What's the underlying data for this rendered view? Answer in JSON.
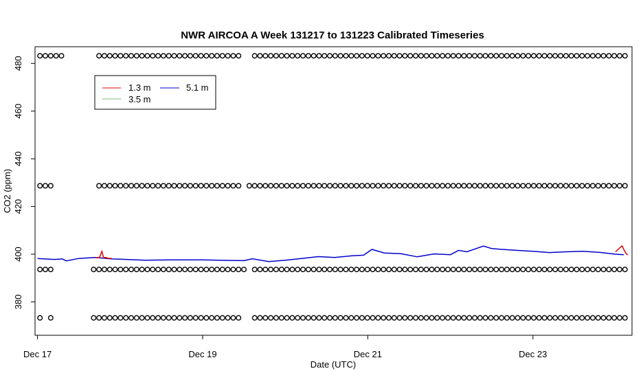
{
  "chart_data": {
    "type": "line",
    "title": "NWR AIRCOA A  Week 131217 to 131223  Calibrated Timeseries",
    "xlabel": "Date (UTC)",
    "ylabel": "CO2 (ppm)",
    "xlim_days": [
      16.97,
      24.2
    ],
    "ylim": [
      366,
      487
    ],
    "x_ticks": [
      {
        "day": 17,
        "label": "Dec 17"
      },
      {
        "day": 19,
        "label": "Dec 19"
      },
      {
        "day": 21,
        "label": "Dec 21"
      },
      {
        "day": 23,
        "label": "Dec 23"
      }
    ],
    "y_ticks": [
      380,
      400,
      420,
      440,
      460,
      480
    ],
    "grid": false,
    "legend": {
      "position": "top-left",
      "entries": [
        {
          "label": "1.3 m",
          "color": "#dd0000"
        },
        {
          "label": "5.1 m",
          "color": "#0000cc"
        },
        {
          "label": "3.5 m",
          "color": "#007a00"
        }
      ]
    },
    "series": [
      {
        "name": "5.1 m",
        "color": "#0000cc",
        "x": [
          17.0,
          17.2,
          17.3,
          17.35,
          17.5,
          17.7,
          17.9,
          18.0,
          18.3,
          18.6,
          19.0,
          19.3,
          19.5,
          19.6,
          19.8,
          20.0,
          20.2,
          20.4,
          20.6,
          20.8,
          20.95,
          21.05,
          21.2,
          21.4,
          21.6,
          21.8,
          22.0,
          22.1,
          22.2,
          22.4,
          22.5,
          22.6,
          22.8,
          23.0,
          23.2,
          23.4,
          23.6,
          23.8,
          24.0,
          24.1
        ],
        "values": [
          398.2,
          397.8,
          398.0,
          397.2,
          398.2,
          398.6,
          398.0,
          397.9,
          397.5,
          397.6,
          397.6,
          397.4,
          397.3,
          398.1,
          396.9,
          397.5,
          398.2,
          399.0,
          398.6,
          399.3,
          399.6,
          402.0,
          400.5,
          400.2,
          398.9,
          400.1,
          399.8,
          401.6,
          401.0,
          403.4,
          402.4,
          402.1,
          401.6,
          401.2,
          400.7,
          401.0,
          401.2,
          400.8,
          400.0,
          399.8
        ]
      },
      {
        "name": "1.3 m",
        "color": "#dd0000",
        "x": [
          17.7,
          17.75,
          17.78,
          17.8,
          17.82,
          17.85,
          17.9,
          24.0,
          24.05,
          24.08,
          24.1,
          24.13,
          24.15
        ],
        "values": [
          398.5,
          398.6,
          401.2,
          398.4,
          398.7,
          398.3,
          398.2,
          401.0,
          402.6,
          403.5,
          402.0,
          400.1,
          399.8
        ]
      },
      {
        "name": "3.5 m",
        "color": "#007a00",
        "x": [],
        "values": []
      }
    ],
    "marker_rows": [
      {
        "y": 483.2,
        "gaps": [
          [
            17.35,
            17.7
          ],
          [
            19.45,
            19.6
          ]
        ]
      },
      {
        "y": 428.7,
        "gaps": [
          [
            17.2,
            17.7
          ],
          [
            19.45,
            19.55
          ]
        ]
      },
      {
        "y": 393.6,
        "gaps": [
          [
            17.2,
            17.65
          ],
          [
            19.55,
            19.62
          ]
        ]
      },
      {
        "y": 373.3,
        "gaps": [
          [
            17.05,
            17.1
          ],
          [
            17.2,
            17.65
          ],
          [
            19.45,
            19.6
          ]
        ]
      }
    ],
    "marker_spacing_days": 0.065
  }
}
